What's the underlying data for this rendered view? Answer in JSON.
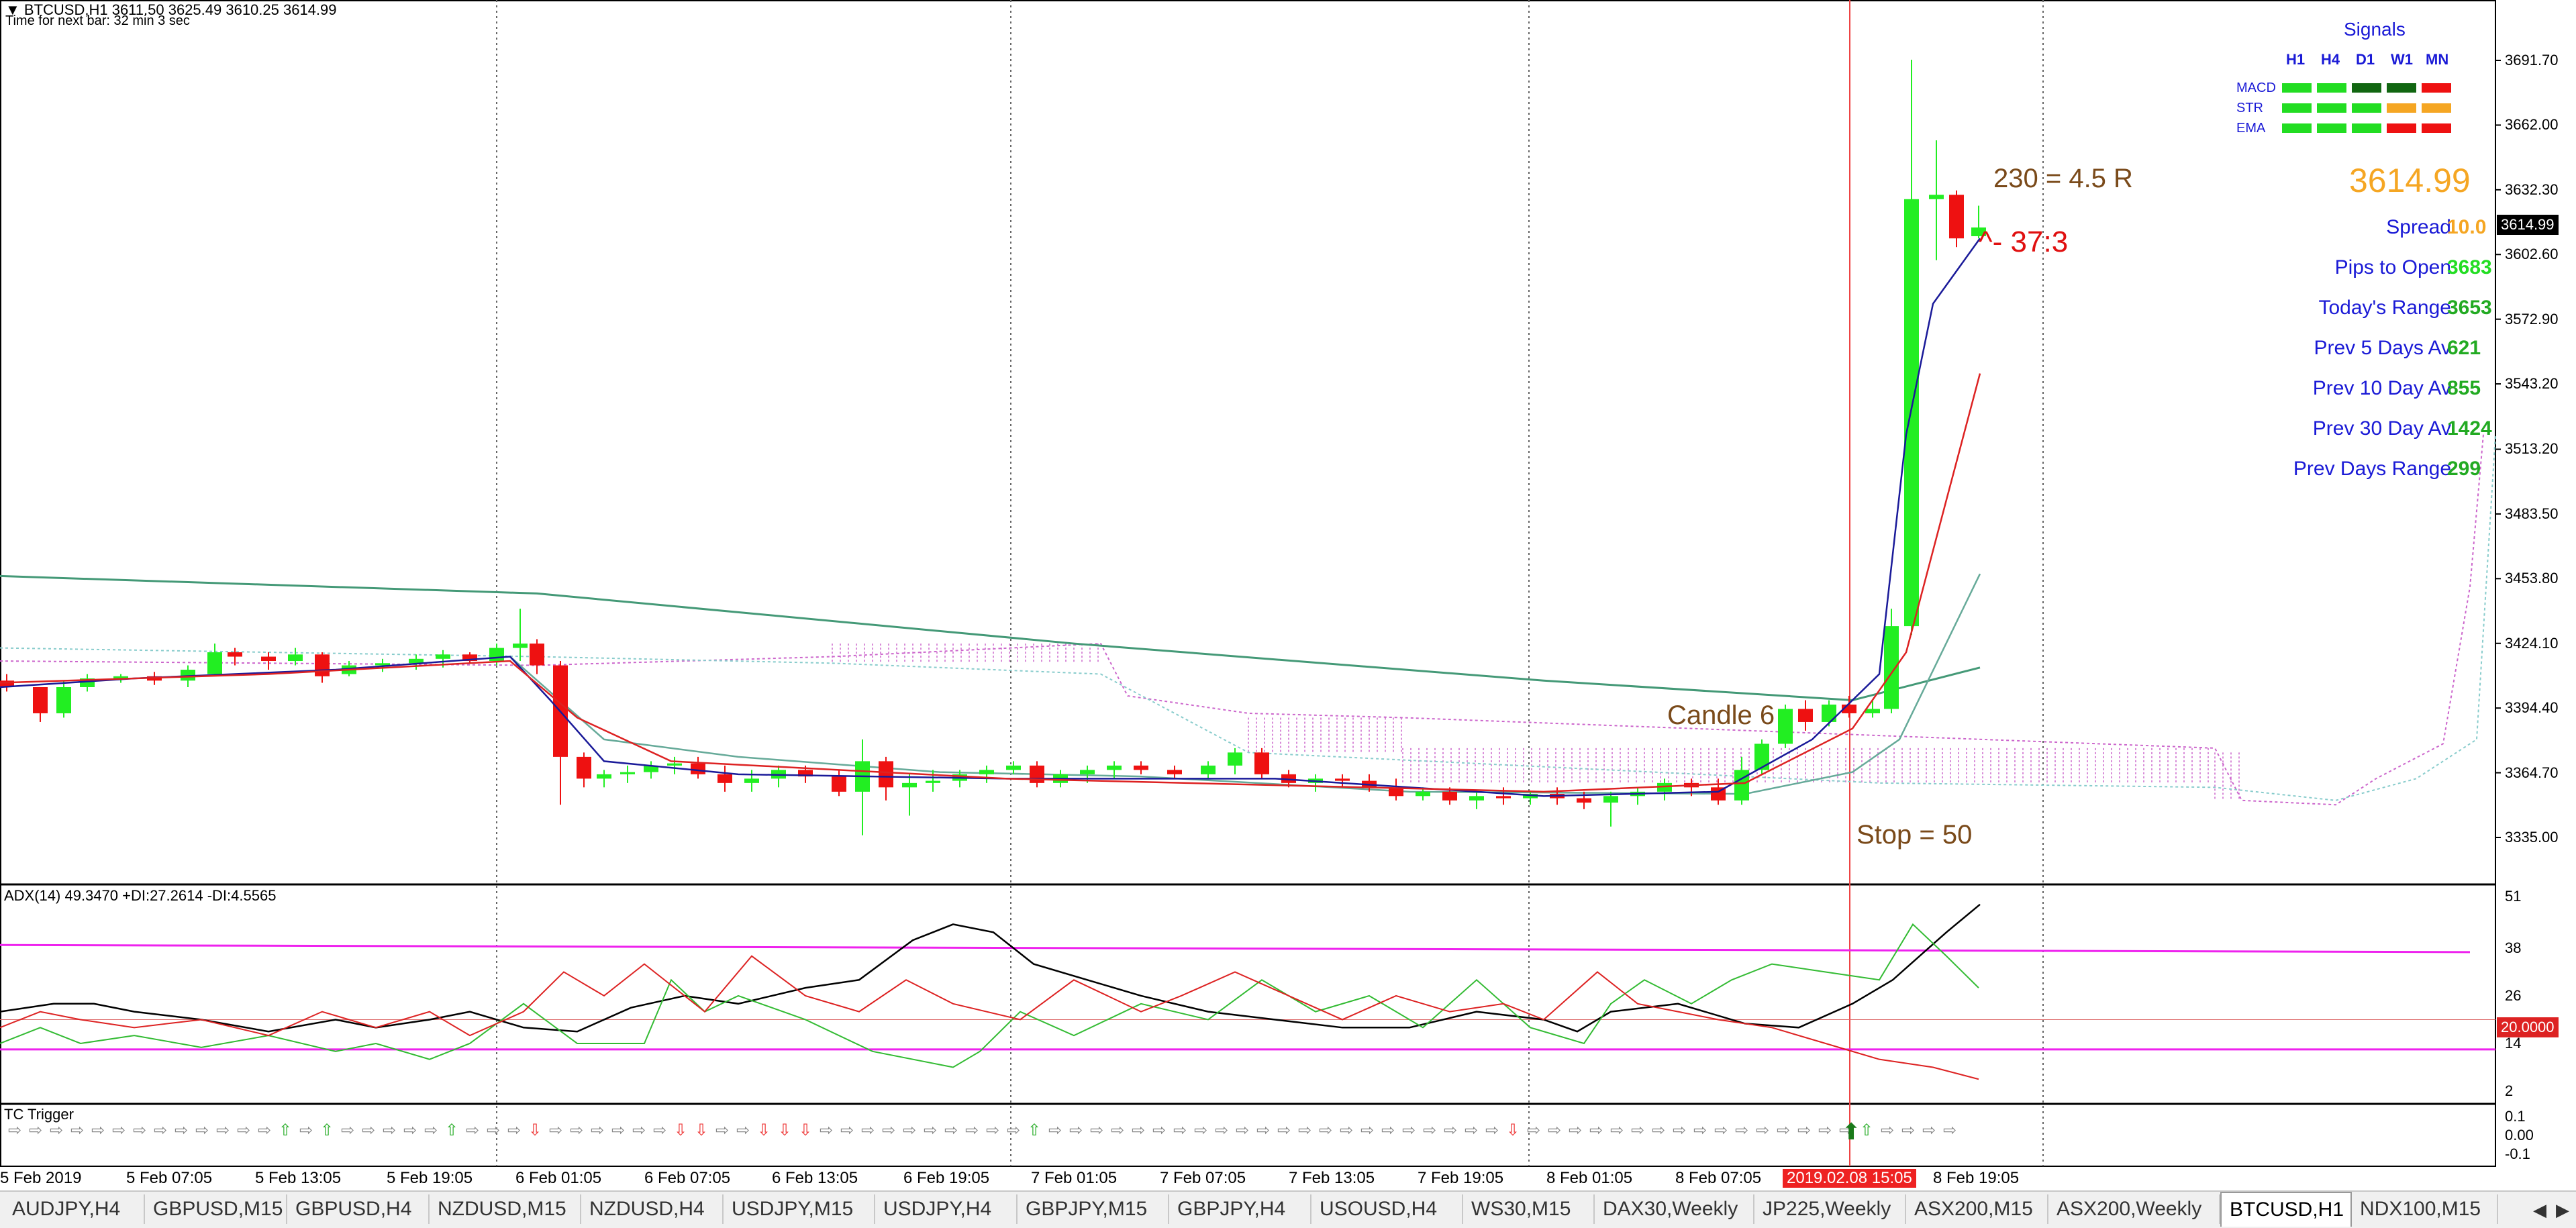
{
  "header": {
    "symbol_line": "BTCUSD,H1  3611.50 3625.49 3610.25 3614.99",
    "timer_line": "Time for next bar: 32 min 3 sec"
  },
  "price_axis": {
    "ticks": [
      "3691.70",
      "3662.00",
      "3632.30",
      "3602.60",
      "3572.90",
      "3543.20",
      "3513.20",
      "3483.50",
      "3453.80",
      "3424.10",
      "3394.40",
      "3364.70",
      "3335.00"
    ],
    "current_price": "3614.99"
  },
  "signals": {
    "title": "Signals",
    "columns": [
      "H1",
      "H4",
      "D1",
      "W1",
      "MN"
    ],
    "rows": [
      {
        "label": "MACD",
        "colors": [
          "#22dd22",
          "#22dd22",
          "#116611",
          "#116611",
          "#ee1111"
        ]
      },
      {
        "label": "STR",
        "colors": [
          "#22dd22",
          "#22dd22",
          "#22dd22",
          "#f5a623",
          "#f5a623"
        ]
      },
      {
        "label": "EMA",
        "colors": [
          "#22dd22",
          "#22dd22",
          "#22dd22",
          "#ee1111",
          "#ee1111"
        ]
      }
    ]
  },
  "info_panel": {
    "price": "3614.99",
    "rows": [
      {
        "label": "Spread",
        "value": "10.0",
        "color": "#f5a623"
      },
      {
        "label": "Pips to Open",
        "value": "3683",
        "color": "#22dd22"
      },
      {
        "label": "Today's Range",
        "value": "3653",
        "color": "#22aa22"
      },
      {
        "label": "Prev 5 Days Av",
        "value": "621",
        "color": "#22aa22"
      },
      {
        "label": "Prev 10 Day Av",
        "value": "855",
        "color": "#22aa22"
      },
      {
        "label": "Prev 30 Day Av",
        "value": "1424",
        "color": "#22aa22"
      },
      {
        "label": "Prev Days Range",
        "value": "299",
        "color": "#22aa22"
      }
    ]
  },
  "annotations": {
    "reward": "230 = 4.5 R",
    "ratio": "^- 37:3",
    "candle": "Candle 6",
    "stop": "Stop = 50"
  },
  "adx": {
    "label": "ADX(14) 49.3470 +DI:27.2614 -DI:4.5565",
    "ticks": [
      "51",
      "38",
      "26",
      "14",
      "2"
    ],
    "level_tag": "20.0000"
  },
  "tc": {
    "label": "TC Trigger",
    "ticks": [
      "0.1",
      "0.00",
      "-0.1"
    ]
  },
  "time_axis": {
    "labels": [
      "5 Feb 2019",
      "5 Feb 07:05",
      "5 Feb 13:05",
      "5 Feb 19:05",
      "6 Feb 01:05",
      "6 Feb 07:05",
      "6 Feb 13:05",
      "6 Feb 19:05",
      "7 Feb 01:05",
      "7 Feb 07:05",
      "7 Feb 13:05",
      "7 Feb 19:05",
      "8 Feb 01:05",
      "8 Feb 07:05",
      "2019.02.08 15:05",
      "8 Feb 19:05"
    ]
  },
  "tabs": [
    "AUDJPY,H4",
    "GBPUSD,M15",
    "GBPUSD,H4",
    "NZDUSD,M15",
    "NZDUSD,H4",
    "USDJPY,M15",
    "USDJPY,H4",
    "GBPJPY,M15",
    "GBPJPY,H4",
    "USOUSD,H4",
    "WS30,M15",
    "DAX30,Weekly",
    "JP225,Weekly",
    "ASX200,M15",
    "ASX200,Weekly",
    "BTCUSD,H1",
    "NDX100,M15"
  ],
  "active_tab": "BTCUSD,H1",
  "colors": {
    "bull": "#22ee22",
    "bear": "#ee1111",
    "ema_fast": "#1a1a99",
    "ema_mid": "#dd2222",
    "sma_slow": "#449977",
    "cloud": "#cc66cc",
    "adx": "#000000",
    "di_plus": "#33bb33",
    "di_minus": "#dd2222",
    "level": "#ee22ee"
  }
}
